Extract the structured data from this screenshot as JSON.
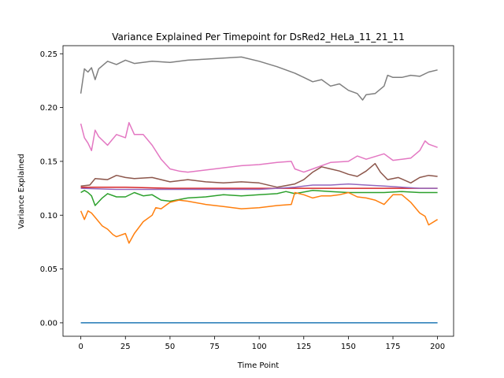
{
  "chart_data": {
    "type": "line",
    "title": "Variance Explained Per Timepoint for DsRed2_HeLa_11_21_11",
    "xlabel": "Time Point",
    "ylabel": "Variance Explained",
    "xlim": [
      -10,
      209
    ],
    "ylim": [
      -0.0125,
      0.2575
    ],
    "xticks": [
      0,
      25,
      50,
      75,
      100,
      125,
      150,
      175,
      200
    ],
    "xtick_labels": [
      "0",
      "25",
      "50",
      "75",
      "100",
      "125",
      "150",
      "175",
      "200"
    ],
    "yticks": [
      0.0,
      0.05,
      0.1,
      0.15,
      0.2,
      0.25
    ],
    "ytick_labels": [
      "0.00",
      "0.05",
      "0.10",
      "0.15",
      "0.20",
      "0.25"
    ],
    "grid": false,
    "legend": "none",
    "series": [
      {
        "color": "#7f7f7f",
        "points": [
          [
            0,
            0.213
          ],
          [
            2,
            0.236
          ],
          [
            4,
            0.233
          ],
          [
            6,
            0.237
          ],
          [
            8,
            0.226
          ],
          [
            10,
            0.236
          ],
          [
            15,
            0.243
          ],
          [
            20,
            0.24
          ],
          [
            25,
            0.244
          ],
          [
            30,
            0.241
          ],
          [
            40,
            0.243
          ],
          [
            50,
            0.242
          ],
          [
            60,
            0.244
          ],
          [
            70,
            0.245
          ],
          [
            80,
            0.246
          ],
          [
            90,
            0.247
          ],
          [
            100,
            0.243
          ],
          [
            110,
            0.238
          ],
          [
            115,
            0.235
          ],
          [
            120,
            0.232
          ],
          [
            125,
            0.228
          ],
          [
            130,
            0.224
          ],
          [
            135,
            0.226
          ],
          [
            140,
            0.22
          ],
          [
            145,
            0.222
          ],
          [
            150,
            0.216
          ],
          [
            155,
            0.213
          ],
          [
            158,
            0.207
          ],
          [
            160,
            0.212
          ],
          [
            165,
            0.213
          ],
          [
            170,
            0.22
          ],
          [
            172,
            0.23
          ],
          [
            175,
            0.228
          ],
          [
            180,
            0.228
          ],
          [
            185,
            0.23
          ],
          [
            190,
            0.229
          ],
          [
            195,
            0.233
          ],
          [
            200,
            0.235
          ]
        ]
      },
      {
        "color": "#e377c2",
        "points": [
          [
            0,
            0.185
          ],
          [
            2,
            0.172
          ],
          [
            4,
            0.167
          ],
          [
            6,
            0.16
          ],
          [
            8,
            0.179
          ],
          [
            10,
            0.173
          ],
          [
            15,
            0.165
          ],
          [
            20,
            0.175
          ],
          [
            25,
            0.172
          ],
          [
            27,
            0.186
          ],
          [
            30,
            0.175
          ],
          [
            35,
            0.175
          ],
          [
            40,
            0.165
          ],
          [
            45,
            0.152
          ],
          [
            50,
            0.143
          ],
          [
            55,
            0.141
          ],
          [
            60,
            0.14
          ],
          [
            70,
            0.142
          ],
          [
            80,
            0.144
          ],
          [
            90,
            0.146
          ],
          [
            100,
            0.147
          ],
          [
            110,
            0.149
          ],
          [
            118,
            0.15
          ],
          [
            120,
            0.143
          ],
          [
            125,
            0.14
          ],
          [
            130,
            0.143
          ],
          [
            140,
            0.149
          ],
          [
            150,
            0.15
          ],
          [
            155,
            0.155
          ],
          [
            160,
            0.152
          ],
          [
            170,
            0.157
          ],
          [
            175,
            0.151
          ],
          [
            180,
            0.152
          ],
          [
            185,
            0.153
          ],
          [
            190,
            0.16
          ],
          [
            193,
            0.169
          ],
          [
            195,
            0.166
          ],
          [
            200,
            0.163
          ]
        ]
      },
      {
        "color": "#8c564b",
        "points": [
          [
            0,
            0.127
          ],
          [
            5,
            0.128
          ],
          [
            8,
            0.134
          ],
          [
            15,
            0.133
          ],
          [
            20,
            0.137
          ],
          [
            25,
            0.135
          ],
          [
            30,
            0.134
          ],
          [
            40,
            0.135
          ],
          [
            50,
            0.131
          ],
          [
            60,
            0.133
          ],
          [
            70,
            0.131
          ],
          [
            80,
            0.13
          ],
          [
            90,
            0.131
          ],
          [
            100,
            0.13
          ],
          [
            110,
            0.126
          ],
          [
            120,
            0.129
          ],
          [
            125,
            0.133
          ],
          [
            130,
            0.14
          ],
          [
            135,
            0.145
          ],
          [
            140,
            0.143
          ],
          [
            145,
            0.141
          ],
          [
            150,
            0.138
          ],
          [
            155,
            0.136
          ],
          [
            160,
            0.141
          ],
          [
            165,
            0.148
          ],
          [
            168,
            0.14
          ],
          [
            172,
            0.133
          ],
          [
            178,
            0.135
          ],
          [
            185,
            0.13
          ],
          [
            190,
            0.135
          ],
          [
            195,
            0.137
          ],
          [
            200,
            0.136
          ]
        ]
      },
      {
        "color": "#d62728",
        "points": [
          [
            0,
            0.126
          ],
          [
            25,
            0.126
          ],
          [
            50,
            0.125
          ],
          [
            75,
            0.125
          ],
          [
            100,
            0.125
          ],
          [
            125,
            0.125
          ],
          [
            150,
            0.125
          ],
          [
            175,
            0.125
          ],
          [
            200,
            0.125
          ]
        ]
      },
      {
        "color": "#9467bd",
        "points": [
          [
            0,
            0.125
          ],
          [
            20,
            0.124
          ],
          [
            50,
            0.124
          ],
          [
            80,
            0.124
          ],
          [
            100,
            0.124
          ],
          [
            110,
            0.125
          ],
          [
            120,
            0.126
          ],
          [
            130,
            0.128
          ],
          [
            140,
            0.128
          ],
          [
            150,
            0.129
          ],
          [
            160,
            0.128
          ],
          [
            170,
            0.127
          ],
          [
            180,
            0.126
          ],
          [
            190,
            0.125
          ],
          [
            200,
            0.125
          ]
        ]
      },
      {
        "color": "#2ca02c",
        "points": [
          [
            0,
            0.121
          ],
          [
            2,
            0.123
          ],
          [
            4,
            0.121
          ],
          [
            6,
            0.118
          ],
          [
            8,
            0.109
          ],
          [
            12,
            0.116
          ],
          [
            15,
            0.12
          ],
          [
            20,
            0.117
          ],
          [
            25,
            0.117
          ],
          [
            30,
            0.121
          ],
          [
            35,
            0.118
          ],
          [
            40,
            0.119
          ],
          [
            45,
            0.114
          ],
          [
            50,
            0.113
          ],
          [
            60,
            0.116
          ],
          [
            70,
            0.117
          ],
          [
            80,
            0.119
          ],
          [
            90,
            0.118
          ],
          [
            100,
            0.119
          ],
          [
            110,
            0.12
          ],
          [
            115,
            0.122
          ],
          [
            120,
            0.12
          ],
          [
            130,
            0.123
          ],
          [
            140,
            0.122
          ],
          [
            150,
            0.121
          ],
          [
            160,
            0.121
          ],
          [
            170,
            0.121
          ],
          [
            180,
            0.122
          ],
          [
            190,
            0.121
          ],
          [
            200,
            0.121
          ]
        ]
      },
      {
        "color": "#ff7f0e",
        "points": [
          [
            0,
            0.104
          ],
          [
            2,
            0.096
          ],
          [
            4,
            0.104
          ],
          [
            6,
            0.102
          ],
          [
            8,
            0.098
          ],
          [
            12,
            0.09
          ],
          [
            15,
            0.087
          ],
          [
            18,
            0.082
          ],
          [
            20,
            0.08
          ],
          [
            25,
            0.083
          ],
          [
            27,
            0.074
          ],
          [
            30,
            0.083
          ],
          [
            35,
            0.094
          ],
          [
            40,
            0.1
          ],
          [
            42,
            0.107
          ],
          [
            45,
            0.106
          ],
          [
            50,
            0.112
          ],
          [
            55,
            0.114
          ],
          [
            60,
            0.113
          ],
          [
            70,
            0.11
          ],
          [
            80,
            0.108
          ],
          [
            90,
            0.106
          ],
          [
            100,
            0.107
          ],
          [
            110,
            0.109
          ],
          [
            118,
            0.11
          ],
          [
            120,
            0.121
          ],
          [
            125,
            0.119
          ],
          [
            130,
            0.116
          ],
          [
            135,
            0.118
          ],
          [
            140,
            0.118
          ],
          [
            145,
            0.119
          ],
          [
            150,
            0.121
          ],
          [
            155,
            0.117
          ],
          [
            160,
            0.116
          ],
          [
            165,
            0.114
          ],
          [
            170,
            0.11
          ],
          [
            175,
            0.119
          ],
          [
            180,
            0.119
          ],
          [
            185,
            0.112
          ],
          [
            190,
            0.102
          ],
          [
            193,
            0.099
          ],
          [
            195,
            0.091
          ],
          [
            200,
            0.096
          ]
        ]
      },
      {
        "color": "#1f77b4",
        "points": [
          [
            0,
            0.0
          ],
          [
            200,
            0.0
          ]
        ]
      }
    ]
  }
}
